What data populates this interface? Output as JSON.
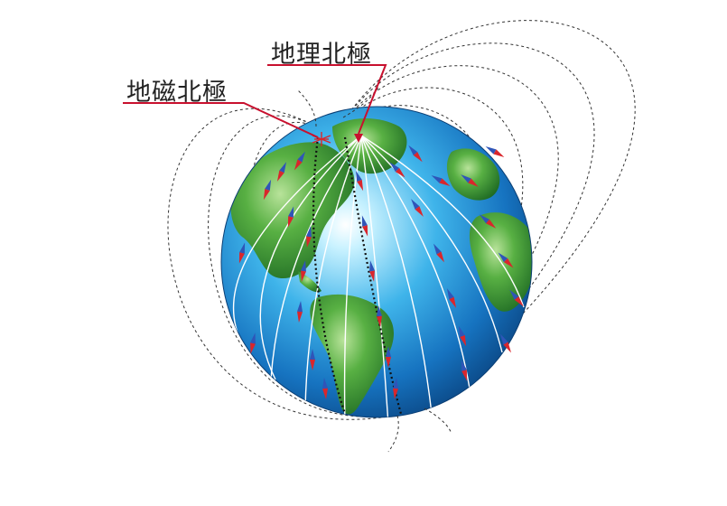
{
  "labels": {
    "geographic_north_pole": "地理北極",
    "magnetic_north_pole": "地磁北極"
  },
  "colors": {
    "ocean_dark": "#0d4f8f",
    "ocean_light": "#9fe4ff",
    "land_green": "#3d9a33",
    "label_line": "#c8102e",
    "needle_north": "#d9262c",
    "needle_south": "#2f55b8",
    "field_line": "#333333"
  },
  "icons": {
    "geographic_pole_marker": "arrow-down-icon",
    "magnetic_pole_marker": "star-icon"
  }
}
